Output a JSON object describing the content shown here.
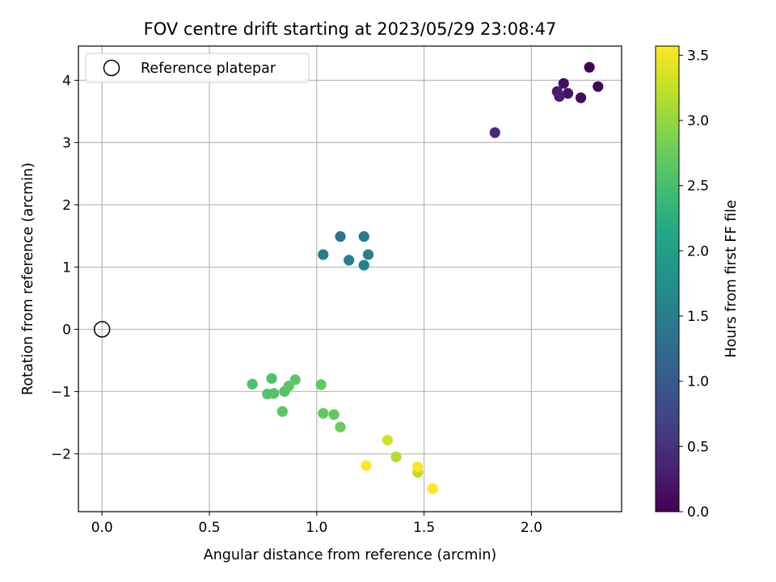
{
  "chart_data": {
    "type": "scatter",
    "title": "FOV centre drift starting at 2023/05/29 23:08:47",
    "xlabel": "Angular distance from reference (arcmin)",
    "ylabel": "Rotation from reference (arcmin)",
    "xlim": [
      -0.11,
      2.42
    ],
    "ylim": [
      -2.93,
      4.55
    ],
    "xticks": [
      0.0,
      0.5,
      1.0,
      1.5,
      2.0
    ],
    "xtick_labels": [
      "0.0",
      "0.5",
      "1.0",
      "1.5",
      "2.0"
    ],
    "yticks": [
      -2,
      -1,
      0,
      1,
      2,
      3,
      4
    ],
    "ytick_labels": [
      "−2",
      "−1",
      "0",
      "1",
      "2",
      "3",
      "4"
    ],
    "grid": true,
    "legend": {
      "position": "upper-left",
      "entries": [
        {
          "label": "Reference platepar",
          "marker": "open-circle"
        }
      ]
    },
    "reference_point": {
      "x": 0.0,
      "y": 0.0
    },
    "colorbar": {
      "label": "Hours from first FF file",
      "colormap": "viridis",
      "range": [
        0.0,
        3.57
      ],
      "ticks": [
        0.0,
        0.5,
        1.0,
        1.5,
        2.0,
        2.5,
        3.0,
        3.5
      ],
      "tick_labels": [
        "0.0",
        "0.5",
        "1.0",
        "1.5",
        "2.0",
        "2.5",
        "3.0",
        "3.5"
      ]
    },
    "points": [
      {
        "x": 2.27,
        "y": 4.21,
        "hours": 0.0
      },
      {
        "x": 2.31,
        "y": 3.9,
        "hours": 0.05
      },
      {
        "x": 2.23,
        "y": 3.72,
        "hours": 0.1
      },
      {
        "x": 2.15,
        "y": 3.95,
        "hours": 0.15
      },
      {
        "x": 2.17,
        "y": 3.79,
        "hours": 0.2
      },
      {
        "x": 2.12,
        "y": 3.82,
        "hours": 0.25
      },
      {
        "x": 2.13,
        "y": 3.74,
        "hours": 0.3
      },
      {
        "x": 1.83,
        "y": 3.16,
        "hours": 0.4
      },
      {
        "x": 1.11,
        "y": 1.49,
        "hours": 1.4
      },
      {
        "x": 1.22,
        "y": 1.49,
        "hours": 1.45
      },
      {
        "x": 1.03,
        "y": 1.2,
        "hours": 1.5
      },
      {
        "x": 1.15,
        "y": 1.11,
        "hours": 1.5
      },
      {
        "x": 1.24,
        "y": 1.2,
        "hours": 1.55
      },
      {
        "x": 1.22,
        "y": 1.03,
        "hours": 1.55
      },
      {
        "x": 0.7,
        "y": -0.88,
        "hours": 2.55
      },
      {
        "x": 0.79,
        "y": -0.79,
        "hours": 2.55
      },
      {
        "x": 0.77,
        "y": -1.04,
        "hours": 2.6
      },
      {
        "x": 0.8,
        "y": -1.03,
        "hours": 2.6
      },
      {
        "x": 0.85,
        "y": -1.0,
        "hours": 2.6
      },
      {
        "x": 0.87,
        "y": -0.91,
        "hours": 2.65
      },
      {
        "x": 0.9,
        "y": -0.81,
        "hours": 2.65
      },
      {
        "x": 0.84,
        "y": -1.32,
        "hours": 2.65
      },
      {
        "x": 1.02,
        "y": -0.89,
        "hours": 2.7
      },
      {
        "x": 1.03,
        "y": -1.35,
        "hours": 2.7
      },
      {
        "x": 1.08,
        "y": -1.37,
        "hours": 2.7
      },
      {
        "x": 1.11,
        "y": -1.57,
        "hours": 2.75
      },
      {
        "x": 1.37,
        "y": -2.05,
        "hours": 3.15
      },
      {
        "x": 1.47,
        "y": -2.3,
        "hours": 3.2
      },
      {
        "x": 1.33,
        "y": -1.78,
        "hours": 3.3
      },
      {
        "x": 1.23,
        "y": -2.19,
        "hours": 3.55
      },
      {
        "x": 1.47,
        "y": -2.21,
        "hours": 3.55
      },
      {
        "x": 1.54,
        "y": -2.56,
        "hours": 3.57
      }
    ]
  }
}
